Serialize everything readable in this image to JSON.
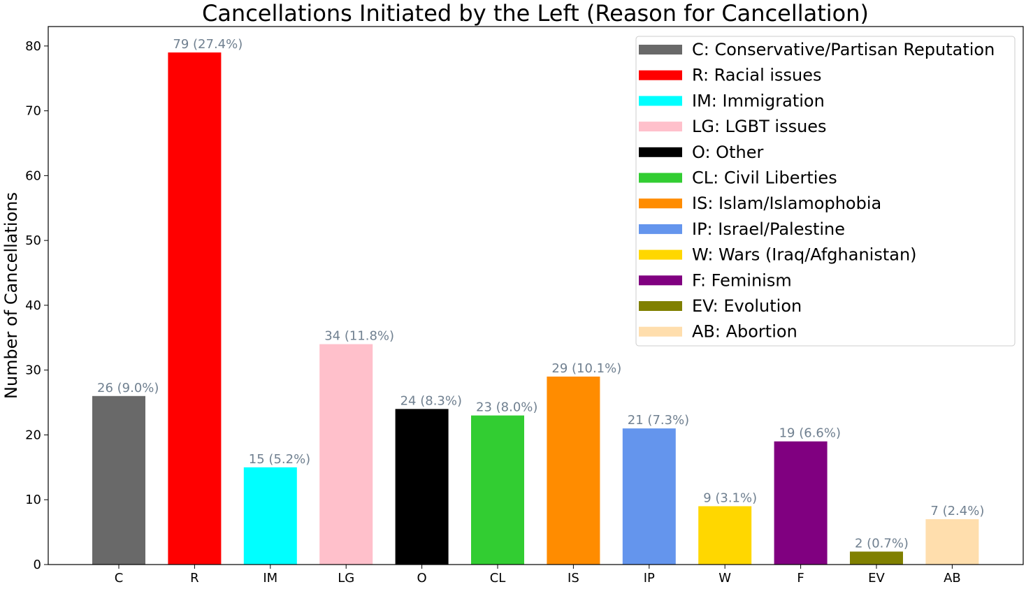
{
  "chart_data": {
    "type": "bar",
    "title": "Cancellations Initiated by the Left (Reason for Cancellation)",
    "xlabel": "",
    "ylabel": "Number of Cancellations",
    "ylim": [
      0,
      83
    ],
    "yticks": [
      0,
      10,
      20,
      30,
      40,
      50,
      60,
      70,
      80
    ],
    "categories": [
      "C",
      "R",
      "IM",
      "LG",
      "O",
      "CL",
      "IS",
      "IP",
      "W",
      "F",
      "EV",
      "AB"
    ],
    "values": [
      26,
      79,
      15,
      34,
      24,
      23,
      29,
      21,
      9,
      19,
      2,
      7
    ],
    "bar_labels": [
      "26 (9.0%)",
      "79 (27.4%)",
      "15 (5.2%)",
      "34 (11.8%)",
      "24 (8.3%)",
      "23 (8.0%)",
      "29 (10.1%)",
      "21 (7.3%)",
      "9 (3.1%)",
      "19 (6.6%)",
      "2 (0.7%)",
      "7 (2.4%)"
    ],
    "colors": [
      "#696969",
      "#ff0000",
      "#00ffff",
      "#ffc0cb",
      "#000000",
      "#32cd32",
      "#ff8c00",
      "#6495ed",
      "#ffd700",
      "#800080",
      "#808000",
      "#ffdead"
    ],
    "bar_label_color": "#708090",
    "legend_position": "top-right",
    "legend": [
      "C: Conservative/Partisan Reputation",
      "R: Racial issues",
      "IM: Immigration",
      "LG: LGBT issues",
      "O: Other",
      "CL: Civil Liberties",
      "IS: Islam/Islamophobia",
      "IP: Israel/Palestine",
      "W: Wars (Iraq/Afghanistan)",
      "F: Feminism",
      "EV: Evolution",
      "AB: Abortion"
    ],
    "grid": false
  }
}
